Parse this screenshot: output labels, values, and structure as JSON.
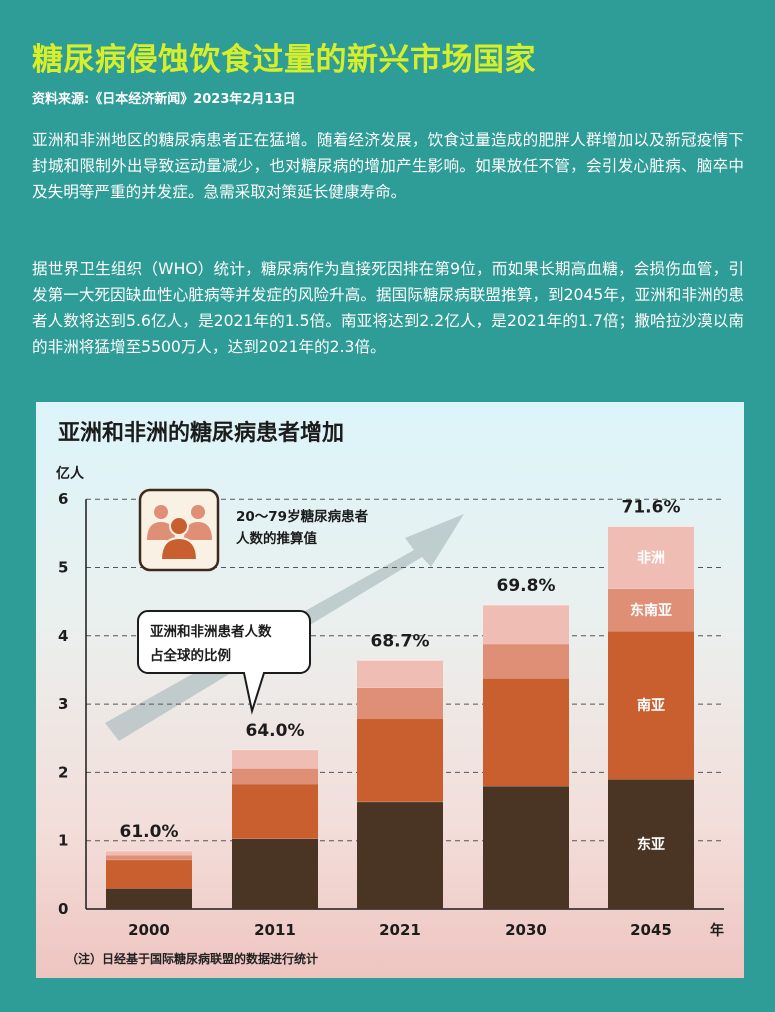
{
  "header": {
    "title": "糖尿病侵蚀饮食过量的新兴市场国家",
    "source": "资料来源:《日本经济新闻》2023年2月13日"
  },
  "body": {
    "paragraph1": "亚洲和非洲地区的糖尿病患者正在猛增。随着经济发展，饮食过量造成的肥胖人群增加以及新冠疫情下封城和限制外出导致运动量减少，也对糖尿病的增加产生影响。如果放任不管，会引发心脏病、脑卒中及失明等严重的并发症。急需采取对策延长健康寿命。",
    "paragraph2": "据世界卫生组织（WHO）统计，糖尿病作为直接死因排在第9位，而如果长期高血糖，会损伤血管，引发第一大死因缺血性心脏病等并发症的风险升高。据国际糖尿病联盟推算，到2045年，亚洲和非洲的患者人数将达到5.6亿人，是2021年的1.5倍。南亚将达到2.2亿人，是2021年的1.7倍；撒哈拉沙漠以南的非洲将猛增至5500万人，达到2021年的2.3倍。"
  },
  "legend_box": {
    "line1": "20～79岁糖尿病患者",
    "line2": "人数的推算值",
    "icon": "people-group-icon"
  },
  "callout": {
    "line1": "亚洲和非洲患者人数",
    "line2": "占全球的比例"
  },
  "colors": {
    "background": "#2e9c97",
    "title": "#d7ef2a",
    "east_asia": "#4a3524",
    "south_asia": "#c95e2f",
    "southeast_asia": "#de8f75",
    "africa": "#f0bdb4"
  },
  "footnote": "（注）日经基于国际糖尿病联盟的数据进行统计",
  "chart_data": {
    "type": "bar",
    "stacked": true,
    "title": "亚洲和非洲的糖尿病患者增加",
    "ylabel": "亿人",
    "xlabel": "年",
    "ylim": [
      0,
      6
    ],
    "yticks": [
      0,
      1,
      2,
      3,
      4,
      5,
      6
    ],
    "grid": true,
    "categories": [
      "2000",
      "2011",
      "2021",
      "2030",
      "2045"
    ],
    "series": [
      {
        "name": "东亚",
        "values": [
          0.3,
          1.03,
          1.57,
          1.8,
          1.9
        ]
      },
      {
        "name": "南亚",
        "values": [
          0.42,
          0.8,
          1.22,
          1.58,
          2.17
        ]
      },
      {
        "name": "东南亚",
        "values": [
          0.07,
          0.23,
          0.45,
          0.5,
          0.62
        ]
      },
      {
        "name": "非洲",
        "values": [
          0.06,
          0.27,
          0.4,
          0.57,
          0.91
        ]
      }
    ],
    "share_labels": [
      "61.0%",
      "64.0%",
      "68.7%",
      "69.8%",
      "71.6%"
    ]
  }
}
